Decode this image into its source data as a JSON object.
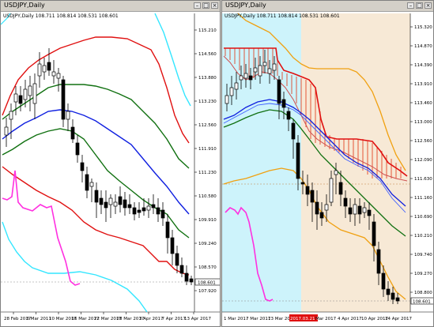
{
  "left": {
    "title": "USDJPY,Daily",
    "symbol_line": "USDJPY,Daily  108.711 108.814 108.531 108.601",
    "price_labels": [
      "115.210",
      "114.560",
      "113.880",
      "113.230",
      "112.560",
      "111.910",
      "111.230",
      "110.580",
      "109.910",
      "109.240",
      "108.570",
      "107.920"
    ],
    "current_price": "108.601",
    "date_labels": [
      "28 Feb 2017",
      "6 Mar 2017",
      "10 Mar 2017",
      "16 Mar 2017",
      "22 Mar 2017",
      "28 Mar 2017",
      "3 Apr 2017",
      "7 Apr 2017",
      "13 Apr 2017"
    ]
  },
  "right": {
    "title": "USDJPY,Daily",
    "symbol_line": "USDJPY,Daily  108.711 108.814 108.531 108.601",
    "price_labels": [
      "115.320",
      "114.870",
      "114.390",
      "113.910",
      "113.460",
      "113.000",
      "112.560",
      "112.090",
      "111.630",
      "111.160",
      "110.690",
      "110.210",
      "109.740",
      "109.270",
      "108.800"
    ],
    "current_price": "108.601",
    "date_labels": [
      "1 Mar 2017",
      "7 Mar 2017",
      "13 Mar 2017",
      "2017.03.21 00:00",
      "Mar 2017",
      "4 Apr 2017",
      "10 Apr 2017",
      "14 Apr 2017"
    ],
    "highlight_date": "2017.03.21 00:00"
  },
  "colors": {
    "cyan": "#33e6ff",
    "red": "#e01010",
    "green": "#107010",
    "blue": "#1020e0",
    "magenta": "#ff30e0",
    "orange": "#f0a010",
    "right_bg_left": "#cdf3fb",
    "right_bg_right": "#f7e9d6"
  },
  "icons": [
    "minimize-icon",
    "maximize-icon",
    "close-icon"
  ]
}
